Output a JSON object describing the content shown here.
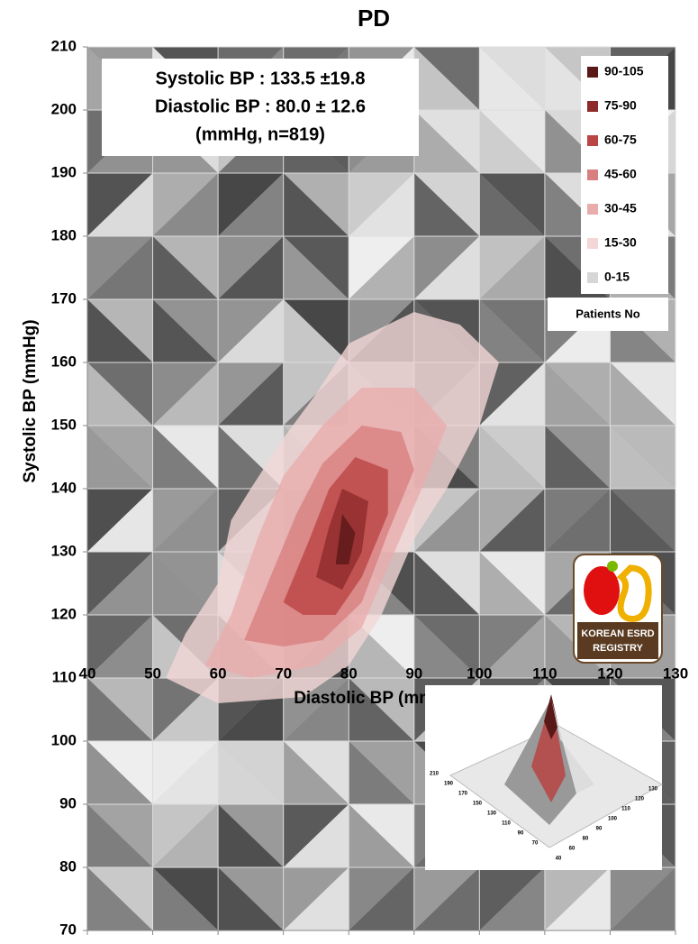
{
  "chart_data": {
    "type": "contour",
    "title": "PD",
    "x_label": "Diastolic BP (mmHg)",
    "y_label": "Systolic BP (mmHg)",
    "annotations": [
      "Systolic BP : 133.5 ±19.8",
      "Diastolic BP : 80.0 ± 12.6",
      "(mmHg, n=819)"
    ],
    "legend_title": "Patients No",
    "legend": "upper right",
    "xlim": [
      40,
      130
    ],
    "xticks": [
      40,
      50,
      60,
      70,
      80,
      90,
      100,
      110,
      120,
      130
    ],
    "ylim": [
      70,
      210
    ],
    "yticks": [
      70,
      80,
      90,
      100,
      110,
      120,
      130,
      140,
      150,
      160,
      170,
      180,
      190,
      200,
      210
    ],
    "series": [
      {
        "name": "90-105",
        "color": "#5a1818",
        "x": [
          78,
          79,
          81,
          80
        ],
        "y": [
          128,
          136,
          133,
          128
        ]
      },
      {
        "name": "75-90",
        "color": "#8e2a2a",
        "x": [
          75,
          77,
          79,
          83,
          82,
          79
        ],
        "y": [
          126,
          134,
          140,
          138,
          130,
          124
        ]
      },
      {
        "name": "60-75",
        "color": "#bb4545",
        "x": [
          70,
          74,
          77,
          81,
          86,
          86,
          82,
          78,
          73
        ],
        "y": [
          122,
          132,
          140,
          145,
          143,
          136,
          126,
          120,
          120
        ]
      },
      {
        "name": "45-60",
        "color": "#d88080",
        "x": [
          64,
          68,
          72,
          76,
          82,
          88,
          90,
          86,
          82,
          76,
          70
        ],
        "y": [
          116,
          126,
          136,
          144,
          150,
          149,
          143,
          133,
          122,
          116,
          115
        ]
      },
      {
        "name": "30-45",
        "color": "#e8acac",
        "x": [
          58,
          62,
          66,
          70,
          76,
          82,
          90,
          95,
          92,
          87,
          82,
          75,
          65
        ],
        "y": [
          112,
          120,
          132,
          142,
          150,
          156,
          156,
          150,
          142,
          130,
          118,
          112,
          110
        ]
      },
      {
        "name": "15-30",
        "color": "#f3d6d6",
        "x": [
          52,
          55,
          60,
          62,
          65,
          70,
          75,
          80,
          90,
          97,
          103,
          100,
          95,
          90,
          85,
          80,
          73,
          60
        ],
        "y": [
          110,
          117,
          125,
          135,
          140,
          148,
          155,
          163,
          168,
          166,
          160,
          150,
          140,
          132,
          120,
          112,
          107,
          106
        ]
      },
      {
        "name": "0-15",
        "color": "#d6d6d6",
        "x": [],
        "y": []
      }
    ],
    "logo": [
      "KOREAN ESRD",
      "REGISTRY"
    ],
    "inset": {
      "systolic_labels": [
        210,
        190,
        170,
        150,
        130,
        110,
        90,
        70
      ],
      "diastolic_labels": [
        40,
        60,
        80,
        90,
        100,
        110,
        120,
        130
      ]
    }
  }
}
